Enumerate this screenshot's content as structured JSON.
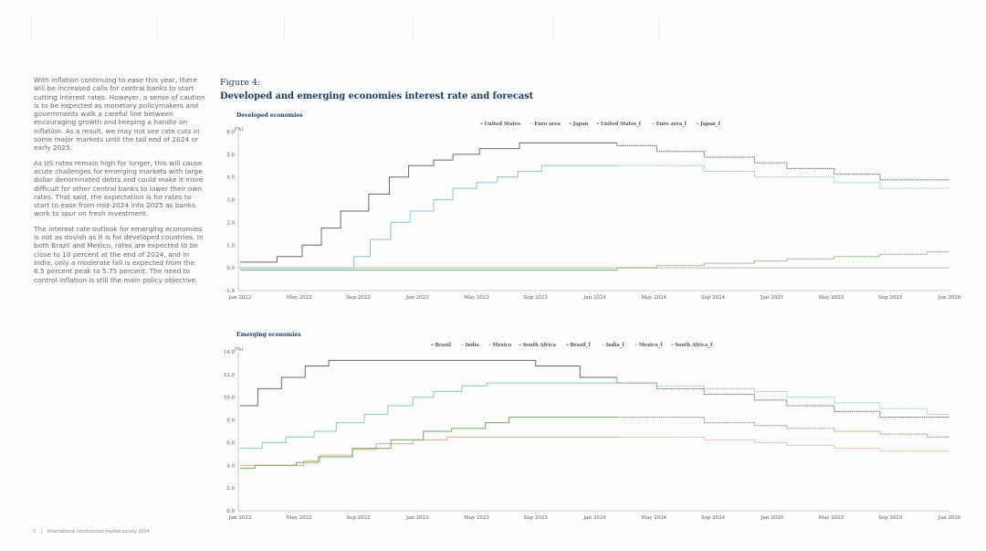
{
  "page": {
    "footer": {
      "page_number": "5",
      "separator": "|",
      "publication": "International construction market survey 2024"
    }
  },
  "body_text": [
    "With inflation continuing to ease this year, there will be increased calls for central banks to start cutting interest rates. However, a sense of caution is to be expected as monetary policymakers and governments walk a careful line between encouraging growth and keeping a handle on inflation. As a result, we may not see rate cuts in some major markets until the tail end of 2024 or early 2025.",
    "As US rates remain high for longer, this will cause acute challenges for emerging markets with large dollar denominated debts and could make it more difficult for other central banks to lower their own rates. That said, the expectation is for rates to start to ease from mid-2024 into 2025 as banks work to spur on fresh investment.",
    "The interest rate outlook for emerging economies is not as dovish as it is for developed countries. In both Brazil and Mexico, rates are expected to be close to 10 percent at the end of 2024, and in India, only a moderate fall is expected from the 6.5 percent peak to 5.75 percent. The need to control inflation is still the main policy objective."
  ],
  "figure": {
    "label": "Figure 4:",
    "title": "Developed and emerging economies interest rate and forecast"
  },
  "chart_data": [
    {
      "type": "line",
      "step": true,
      "title": "Developed economies",
      "ylabel": "(%)",
      "ylim": [
        -1.0,
        6.0
      ],
      "yticks": [
        "-1.0",
        "0.0",
        "1.0",
        "2.0",
        "3.0",
        "4.0",
        "5.0",
        "6.0"
      ],
      "xlim": [
        "2022-01",
        "2026-01"
      ],
      "xticks": [
        "Jan 2022",
        "May 2022",
        "Sep 2022",
        "Jan 2023",
        "May 2023",
        "Sep 2023",
        "Jan 2024",
        "May 2024",
        "Sep 2024",
        "Jan 2025",
        "May 2025",
        "Sep 2025",
        "Jan 2026"
      ],
      "legend_position": "top-right",
      "x_unit": "months since Jan 2022",
      "series": [
        {
          "name": "United States",
          "color": "#6b6b6b",
          "dashed": false,
          "points": [
            [
              0,
              0.25
            ],
            [
              2.5,
              0.5
            ],
            [
              4.2,
              1.0
            ],
            [
              5.5,
              1.75
            ],
            [
              6.8,
              2.5
            ],
            [
              8.7,
              3.25
            ],
            [
              10.1,
              4.0
            ],
            [
              11.4,
              4.5
            ],
            [
              13.1,
              4.75
            ],
            [
              14.4,
              5.0
            ],
            [
              16.2,
              5.25
            ],
            [
              18.9,
              5.5
            ],
            [
              25.5,
              5.5
            ]
          ]
        },
        {
          "name": "Euro area",
          "color": "#8cc4d6",
          "dashed": false,
          "points": [
            [
              0,
              0.0
            ],
            [
              7.7,
              0.0
            ],
            [
              7.7,
              0.5
            ],
            [
              8.8,
              1.25
            ],
            [
              10.2,
              2.0
            ],
            [
              11.5,
              2.5
            ],
            [
              13.1,
              3.0
            ],
            [
              14.4,
              3.5
            ],
            [
              16.0,
              3.75
            ],
            [
              17.4,
              4.0
            ],
            [
              18.8,
              4.25
            ],
            [
              20.4,
              4.5
            ],
            [
              25.5,
              4.5
            ]
          ]
        },
        {
          "name": "Japan",
          "color": "#6fae5b",
          "dashed": false,
          "points": [
            [
              0,
              -0.1
            ],
            [
              25.5,
              -0.1
            ]
          ]
        },
        {
          "name": "United States_f",
          "color": "#6b6b6b",
          "dashed": true,
          "points": [
            [
              25.5,
              5.5
            ],
            [
              25.5,
              5.375
            ],
            [
              28.2,
              5.125
            ],
            [
              31.4,
              4.875
            ],
            [
              34.8,
              4.625
            ],
            [
              37.0,
              4.375
            ],
            [
              40.2,
              4.125
            ],
            [
              43.3,
              3.875
            ],
            [
              48,
              3.875
            ]
          ]
        },
        {
          "name": "Euro area_f",
          "color": "#8cc4d6",
          "dashed": true,
          "points": [
            [
              25.5,
              4.5
            ],
            [
              31.4,
              4.5
            ],
            [
              31.4,
              4.25
            ],
            [
              34.8,
              4.0
            ],
            [
              40.2,
              3.75
            ],
            [
              43.3,
              3.5
            ],
            [
              48,
              3.5
            ]
          ]
        },
        {
          "name": "Japan_f",
          "color": "#6fae5b",
          "dashed": true,
          "points": [
            [
              25.5,
              -0.1
            ],
            [
              25.5,
              0.0
            ],
            [
              28.2,
              0.1
            ],
            [
              31.4,
              0.2
            ],
            [
              34.8,
              0.3
            ],
            [
              37.0,
              0.4
            ],
            [
              40.2,
              0.5
            ],
            [
              43.3,
              0.6
            ],
            [
              46.5,
              0.7
            ],
            [
              48,
              0.7
            ]
          ]
        }
      ]
    },
    {
      "type": "line",
      "step": true,
      "title": "Emerging economies",
      "ylabel": "(%)",
      "ylim": [
        0.0,
        14.0
      ],
      "yticks": [
        "0.0",
        "2.0",
        "4.0",
        "6.0",
        "8.0",
        "10.0",
        "12.0",
        "14.0"
      ],
      "xlim": [
        "2022-01",
        "2026-01"
      ],
      "xticks": [
        "Jan 2022",
        "May 2022",
        "Sep 2022",
        "Jan 2023",
        "May 2023",
        "Sep 2023",
        "Jan 2024",
        "May 2024",
        "Sep 2024",
        "Jan 2025",
        "May 2025",
        "Sep 2025",
        "Jan 2026"
      ],
      "legend_position": "top-right",
      "x_unit": "months since Jan 2022",
      "series": [
        {
          "name": "Brazil",
          "color": "#6b6b6b",
          "dashed": false,
          "points": [
            [
              0,
              9.25
            ],
            [
              1.2,
              10.75
            ],
            [
              2.8,
              11.75
            ],
            [
              4.4,
              12.75
            ],
            [
              6.0,
              13.25
            ],
            [
              20.0,
              13.25
            ],
            [
              20.0,
              12.75
            ],
            [
              23.0,
              11.75
            ],
            [
              25.5,
              11.75
            ]
          ]
        },
        {
          "name": "India",
          "color": "#e7a98c",
          "dashed": false,
          "points": [
            [
              0,
              4.0
            ],
            [
              4.3,
              4.4
            ],
            [
              5.4,
              4.9
            ],
            [
              7.6,
              5.4
            ],
            [
              9.2,
              5.9
            ],
            [
              11.7,
              6.25
            ],
            [
              14.0,
              6.5
            ],
            [
              25.5,
              6.5
            ]
          ]
        },
        {
          "name": "Mexico",
          "color": "#8cc4d6",
          "dashed": false,
          "points": [
            [
              0,
              5.5
            ],
            [
              1.5,
              6.0
            ],
            [
              3.1,
              6.5
            ],
            [
              5.0,
              7.0
            ],
            [
              6.5,
              7.75
            ],
            [
              8.4,
              8.5
            ],
            [
              10.0,
              9.25
            ],
            [
              11.7,
              10.0
            ],
            [
              13.1,
              10.5
            ],
            [
              15.0,
              11.0
            ],
            [
              16.7,
              11.25
            ],
            [
              25.5,
              11.25
            ]
          ]
        },
        {
          "name": "South Africa",
          "color": "#6fae5b",
          "dashed": false,
          "points": [
            [
              0,
              3.75
            ],
            [
              1.0,
              4.0
            ],
            [
              3.8,
              4.25
            ],
            [
              5.3,
              4.75
            ],
            [
              7.6,
              5.5
            ],
            [
              10.2,
              6.25
            ],
            [
              12.4,
              7.0
            ],
            [
              14.3,
              7.25
            ],
            [
              16.6,
              7.75
            ],
            [
              18.2,
              8.25
            ],
            [
              25.5,
              8.25
            ]
          ]
        },
        {
          "name": "Brazil_f",
          "color": "#6b6b6b",
          "dashed": true,
          "points": [
            [
              25.5,
              11.75
            ],
            [
              25.5,
              11.25
            ],
            [
              28.2,
              10.75
            ],
            [
              31.4,
              10.25
            ],
            [
              34.8,
              9.75
            ],
            [
              37.0,
              9.25
            ],
            [
              40.2,
              8.75
            ],
            [
              43.3,
              8.25
            ],
            [
              48,
              8.25
            ]
          ]
        },
        {
          "name": "India_f",
          "color": "#e7a98c",
          "dashed": true,
          "points": [
            [
              25.5,
              6.5
            ],
            [
              31.4,
              6.5
            ],
            [
              31.4,
              6.25
            ],
            [
              34.8,
              6.0
            ],
            [
              37.0,
              5.75
            ],
            [
              40.2,
              5.5
            ],
            [
              43.3,
              5.25
            ],
            [
              48,
              5.25
            ]
          ]
        },
        {
          "name": "Mexico_f",
          "color": "#8cc4d6",
          "dashed": true,
          "points": [
            [
              25.5,
              11.25
            ],
            [
              28.2,
              11.0
            ],
            [
              31.4,
              10.75
            ],
            [
              34.8,
              10.5
            ],
            [
              37.0,
              10.0
            ],
            [
              40.2,
              9.5
            ],
            [
              43.3,
              9.0
            ],
            [
              46.5,
              8.5
            ],
            [
              48,
              8.5
            ]
          ]
        },
        {
          "name": "South Africa_f",
          "color": "#6fae5b",
          "dashed": true,
          "points": [
            [
              25.5,
              8.25
            ],
            [
              31.4,
              8.25
            ],
            [
              31.4,
              7.75
            ],
            [
              34.8,
              7.5
            ],
            [
              37.0,
              7.25
            ],
            [
              40.2,
              7.0
            ],
            [
              43.3,
              6.75
            ],
            [
              46.5,
              6.5
            ],
            [
              48,
              6.5
            ]
          ]
        }
      ]
    }
  ]
}
